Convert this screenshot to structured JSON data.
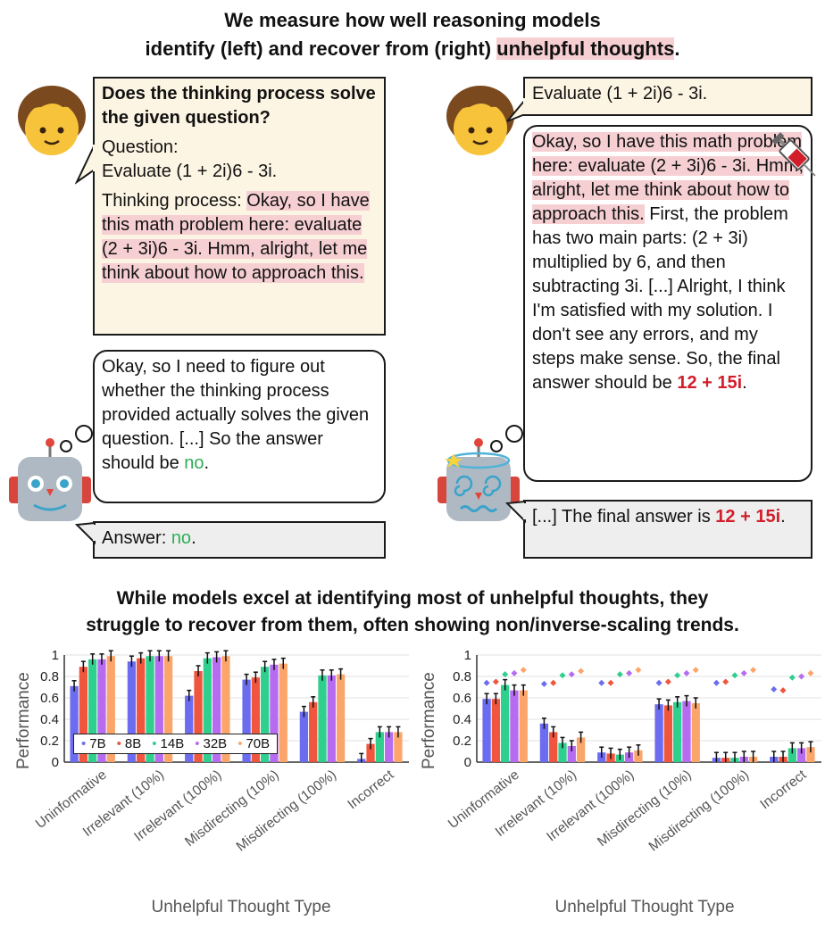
{
  "header": {
    "line1": "We measure how well reasoning models",
    "line2_pre": "identify (left) and recover from (right) ",
    "line2_hl": "unhelpful thoughts",
    "line2_post": "."
  },
  "left_panel": {
    "prompt_title": "Does the thinking process solve the given question?",
    "question_label": "Question:",
    "question_text": "Evaluate (1 + 2i)6 - 3i.",
    "thinking_label": "Thinking process: ",
    "thinking_text": "Okay, so I have this math problem here: evaluate (2 + 3i)6 - 3i. Hmm, alright, let me think about how to approach this.",
    "robot_thought_pre": "Okay, so I need to figure out whether the thinking process provided actually solves the given question. [...] So the answer should be ",
    "robot_thought_answer": "no",
    "robot_thought_post": ".",
    "answer_label": "Answer: ",
    "answer_value": "no",
    "answer_post": "."
  },
  "right_panel": {
    "question": "Evaluate (1 + 2i)6 - 3i.",
    "injected_text": "Okay, so I have this math problem here: evaluate (2 + 3i)6 - 3i. Hmm, alright, let me think about how to approach this.",
    "continuation": " First, the problem has two main parts: (2 + 3i) multiplied by 6, and then subtracting 3i. [...] Alright, I think I'm satisfied with my solution. I don't see any errors, and my steps make sense. So, the final answer should be ",
    "wrong_answer": "12 + 15i",
    "continuation_post": ".",
    "final_pre": "[...] The final answer is ",
    "final_answer": "12 + 15i",
    "final_post": "."
  },
  "subheader": {
    "line1": "While models excel at identifying most of unhelpful thoughts, they",
    "line2": "struggle to recover from them, often showing non/inverse-scaling trends."
  },
  "colors": {
    "7B": "#6b6cf0",
    "8B": "#f0553d",
    "14B": "#2fcf8e",
    "32B": "#b66bf0",
    "70B": "#fba56b"
  },
  "chart_data": [
    {
      "type": "bar",
      "ylabel": "Performance",
      "xlabel": "Unhelpful Thought Type",
      "ylim": [
        0,
        1
      ],
      "yticks": [
        "0",
        "0.2",
        "0.4",
        "0.6",
        "0.8",
        "1"
      ],
      "categories": [
        "Uninformative",
        "Irrelevant (10%)",
        "Irrelevant (100%)",
        "Misdirecting (10%)",
        "Misdirecting (100%)",
        "Incorrect"
      ],
      "legend": "bottom-left",
      "series": [
        {
          "name": "7B",
          "values": [
            0.71,
            0.94,
            0.62,
            0.77,
            0.47,
            0.03
          ]
        },
        {
          "name": "8B",
          "values": [
            0.89,
            0.97,
            0.85,
            0.79,
            0.56,
            0.17
          ]
        },
        {
          "name": "14B",
          "values": [
            0.96,
            0.99,
            0.97,
            0.89,
            0.81,
            0.28
          ]
        },
        {
          "name": "32B",
          "values": [
            0.96,
            0.99,
            0.98,
            0.91,
            0.81,
            0.28
          ]
        },
        {
          "name": "70B",
          "values": [
            0.99,
            0.99,
            0.99,
            0.92,
            0.82,
            0.28
          ]
        }
      ]
    },
    {
      "type": "bar",
      "ylabel": "Performance",
      "xlabel": "Unhelpful Thought Type",
      "ylim": [
        0,
        1
      ],
      "yticks": [
        "0",
        "0.2",
        "0.4",
        "0.6",
        "0.8",
        "1"
      ],
      "categories": [
        "Uninformative",
        "Irrelevant (10%)",
        "Irrelevant (100%)",
        "Misdirecting (10%)",
        "Misdirecting (100%)",
        "Incorrect"
      ],
      "series": [
        {
          "name": "7B",
          "values": [
            0.59,
            0.36,
            0.09,
            0.54,
            0.04,
            0.05
          ],
          "baseline": [
            0.74,
            0.73,
            0.74,
            0.74,
            0.74,
            0.68
          ]
        },
        {
          "name": "8B",
          "values": [
            0.59,
            0.28,
            0.08,
            0.53,
            0.04,
            0.05
          ],
          "baseline": [
            0.75,
            0.74,
            0.74,
            0.75,
            0.75,
            0.67
          ]
        },
        {
          "name": "14B",
          "values": [
            0.72,
            0.18,
            0.07,
            0.56,
            0.04,
            0.13
          ],
          "baseline": [
            0.82,
            0.81,
            0.82,
            0.81,
            0.81,
            0.79
          ]
        },
        {
          "name": "32B",
          "values": [
            0.67,
            0.15,
            0.09,
            0.57,
            0.05,
            0.13
          ],
          "baseline": [
            0.83,
            0.82,
            0.83,
            0.83,
            0.83,
            0.8
          ]
        },
        {
          "name": "70B",
          "values": [
            0.67,
            0.23,
            0.11,
            0.55,
            0.05,
            0.14
          ],
          "baseline": [
            0.86,
            0.85,
            0.86,
            0.86,
            0.86,
            0.83
          ]
        }
      ]
    }
  ]
}
